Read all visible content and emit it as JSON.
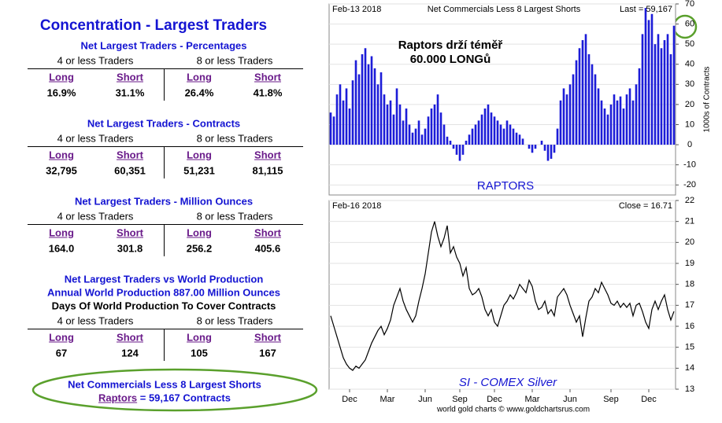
{
  "title": "Concentration - Largest Traders",
  "sections": [
    {
      "titles": [
        "Net Largest Traders - Percentages"
      ],
      "groups": [
        "4 or less Traders",
        "8 or less Traders"
      ],
      "headers": [
        "Long",
        "Short",
        "Long",
        "Short"
      ],
      "values": [
        "16.9%",
        "31.1%",
        "26.4%",
        "41.8%"
      ]
    },
    {
      "titles": [
        "Net Largest Traders - Contracts"
      ],
      "groups": [
        "4 or less Traders",
        "8 or less Traders"
      ],
      "headers": [
        "Long",
        "Short",
        "Long",
        "Short"
      ],
      "values": [
        "32,795",
        "60,351",
        "51,231",
        "81,115"
      ]
    },
    {
      "titles": [
        "Net Largest Traders - Million Ounces"
      ],
      "groups": [
        "4 or less Traders",
        "8 or less Traders"
      ],
      "headers": [
        "Long",
        "Short",
        "Long",
        "Short"
      ],
      "values": [
        "164.0",
        "301.8",
        "256.2",
        "405.6"
      ]
    },
    {
      "titles": [
        "Net Largest Traders vs World Production",
        "Annual World Production 887.00 Million Ounces",
        "Days Of World Production To Cover Contracts"
      ],
      "groups": [
        "4 or less Traders",
        "8 or less Traders"
      ],
      "headers": [
        "Long",
        "Short",
        "Long",
        "Short"
      ],
      "values": [
        "67",
        "124",
        "105",
        "167"
      ]
    }
  ],
  "footer": {
    "line1": "Net Commercials Less 8 Largest Shorts",
    "link": "Raptors",
    "rest": " = 59,167 Contracts"
  },
  "chart_data": [
    {
      "type": "bar",
      "title": "Net Commercials Less 8 Largest Shorts",
      "date": "Feb-13 2018",
      "last": "Last = 59,167",
      "annotation": [
        "Raptors drží téměř",
        "60.000 LONGů"
      ],
      "label": "RAPTORS",
      "y_label": "1000s of Contracts",
      "color": "#1c1cd8",
      "values": [
        16,
        14,
        25,
        30,
        22,
        28,
        18,
        32,
        42,
        35,
        45,
        48,
        40,
        44,
        38,
        30,
        36,
        25,
        20,
        22,
        15,
        28,
        20,
        12,
        18,
        10,
        6,
        8,
        12,
        5,
        8,
        14,
        18,
        20,
        25,
        16,
        10,
        4,
        2,
        -2,
        -5,
        -8,
        -5,
        2,
        5,
        8,
        10,
        12,
        15,
        18,
        20,
        16,
        14,
        12,
        10,
        8,
        12,
        10,
        8,
        6,
        5,
        3,
        0,
        -2,
        -4,
        -2,
        0,
        2,
        -3,
        -8,
        -7,
        -4,
        8,
        22,
        28,
        25,
        30,
        35,
        42,
        48,
        52,
        55,
        45,
        40,
        35,
        28,
        22,
        18,
        15,
        20,
        25,
        22,
        24,
        18,
        25,
        28,
        22,
        30,
        38,
        55,
        68,
        62,
        65,
        50,
        55,
        48,
        52,
        55,
        45,
        59.167
      ],
      "ylim": [
        -25,
        70
      ],
      "yticks": [
        -20,
        -10,
        0,
        10,
        20,
        30,
        40,
        50,
        60,
        70
      ],
      "grid": true
    },
    {
      "type": "line",
      "title": "SI  -  COMEX Silver",
      "date": "Feb-16 2018",
      "close": "Close = 16.71",
      "credit": "world gold charts © www.goldchartsrus.com",
      "color": "#000000",
      "categories": [
        null,
        null,
        null,
        null,
        null,
        null,
        "Dec",
        null,
        null,
        null,
        null,
        null,
        null,
        null,
        null,
        null,
        null,
        null,
        "Mar",
        null,
        null,
        null,
        null,
        null,
        null,
        null,
        null,
        null,
        null,
        null,
        "Jun",
        null,
        null,
        null,
        null,
        null,
        null,
        null,
        null,
        null,
        null,
        "Sep",
        null,
        null,
        null,
        null,
        null,
        null,
        null,
        null,
        null,
        null,
        "Dec",
        null,
        null,
        null,
        null,
        null,
        null,
        null,
        null,
        null,
        null,
        null,
        "Mar",
        null,
        null,
        null,
        null,
        null,
        null,
        null,
        null,
        null,
        null,
        null,
        "Jun",
        null,
        null,
        null,
        null,
        null,
        null,
        null,
        null,
        null,
        null,
        null,
        null,
        "Sep",
        null,
        null,
        null,
        null,
        null,
        null,
        null,
        null,
        null,
        null,
        null,
        "Dec",
        null,
        null,
        null,
        null,
        null,
        null,
        null,
        null
      ],
      "values": [
        16.5,
        16,
        15.5,
        15,
        14.5,
        14.2,
        14,
        13.9,
        14.1,
        14,
        14.2,
        14.4,
        14.8,
        15.2,
        15.5,
        15.8,
        16,
        15.6,
        15.9,
        16.3,
        17,
        17.4,
        17.8,
        17.2,
        16.8,
        16.5,
        16.2,
        16.5,
        17.2,
        17.8,
        18.5,
        19.5,
        20.5,
        21,
        20.3,
        19.8,
        20.2,
        20.8,
        19.5,
        19.8,
        19.3,
        19,
        18.4,
        18.8,
        17.8,
        17.5,
        17.6,
        17.8,
        17.4,
        16.8,
        16.5,
        16.8,
        16.2,
        16,
        16.5,
        17,
        17.2,
        17.5,
        17.3,
        17.6,
        18,
        17.8,
        17.6,
        18.2,
        17.9,
        17.2,
        16.8,
        16.9,
        17.2,
        16.6,
        16.8,
        16.5,
        17.4,
        17.6,
        17.8,
        17.5,
        17,
        16.6,
        16.2,
        16.5,
        15.5,
        16.4,
        17.2,
        17.4,
        17.8,
        17.6,
        18.1,
        17.8,
        17.5,
        17.1,
        17,
        17.2,
        16.9,
        17.1,
        16.9,
        17.1,
        16.5,
        17,
        17.1,
        16.7,
        16.2,
        15.9,
        16.8,
        17.2,
        16.8,
        17.2,
        17.5,
        16.8,
        16.3,
        16.71
      ],
      "ylim": [
        13,
        22
      ],
      "yticks": [
        13,
        14,
        15,
        16,
        17,
        18,
        19,
        20,
        21,
        22
      ],
      "grid": true
    }
  ]
}
